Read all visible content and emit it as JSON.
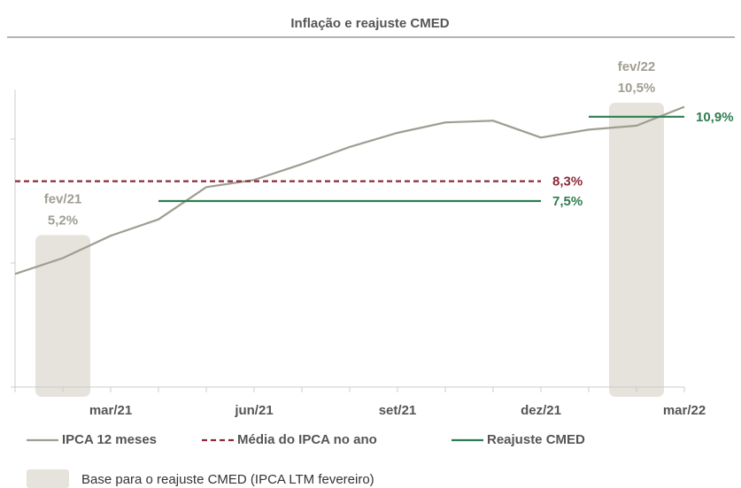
{
  "chart_data": {
    "type": "line",
    "title": "Inflação e reajuste CMED",
    "categories": [
      null,
      null,
      "mar/21",
      null,
      null,
      "jun/21",
      null,
      null,
      "set/21",
      null,
      null,
      "dez/21",
      null,
      null,
      "mar/22"
    ],
    "ylim": [
      0,
      12
    ],
    "yticks": [
      0,
      5,
      10
    ],
    "series": [
      {
        "name": "IPCA 12 meses",
        "color": "#a09d92",
        "dash": false,
        "values": [
          4.56,
          5.2,
          6.1,
          6.76,
          8.06,
          8.35,
          8.99,
          9.68,
          10.25,
          10.67,
          10.74,
          10.06,
          10.38,
          10.54,
          11.3
        ],
        "value_labels": [
          null,
          "5,2%",
          null,
          null,
          null,
          null,
          null,
          null,
          null,
          null,
          null,
          null,
          null,
          "10,5%",
          null
        ]
      },
      {
        "name": "Média do IPCA no ano",
        "color": "#8b2a3a",
        "dash": true,
        "values": [
          8.3,
          8.3,
          8.3,
          8.3,
          8.3,
          8.3,
          8.3,
          8.3,
          8.3,
          8.3,
          8.3,
          8.3,
          null,
          null,
          null
        ],
        "value_labels": [
          null,
          null,
          null,
          null,
          null,
          null,
          null,
          null,
          null,
          null,
          null,
          "8,3%",
          null,
          null,
          null
        ]
      },
      {
        "name": "Reajuste CMED",
        "color": "#2e7d4f",
        "dash": false,
        "values": [
          null,
          null,
          null,
          7.5,
          7.5,
          7.5,
          7.5,
          7.5,
          7.5,
          7.5,
          7.5,
          7.5,
          null,
          null,
          null
        ],
        "value_labels": [
          null,
          null,
          null,
          null,
          null,
          null,
          null,
          null,
          null,
          null,
          null,
          "7,5%",
          null,
          null,
          null
        ]
      },
      {
        "color": "#2e7d4f",
        "dash": false,
        "values": [
          null,
          null,
          null,
          null,
          null,
          null,
          null,
          null,
          null,
          null,
          null,
          null,
          10.9,
          10.9,
          10.9
        ],
        "value_labels": [
          null,
          null,
          null,
          null,
          null,
          null,
          null,
          null,
          null,
          null,
          null,
          null,
          null,
          null,
          "10,9%"
        ]
      }
    ],
    "highlights": [
      {
        "label": "fev/21"
      },
      {
        "label": "fev/22"
      }
    ],
    "highlight_color": "#e6e2dc",
    "highlight_legend": "Base para o reajuste CMED (IPCA LTM fevereiro)"
  }
}
